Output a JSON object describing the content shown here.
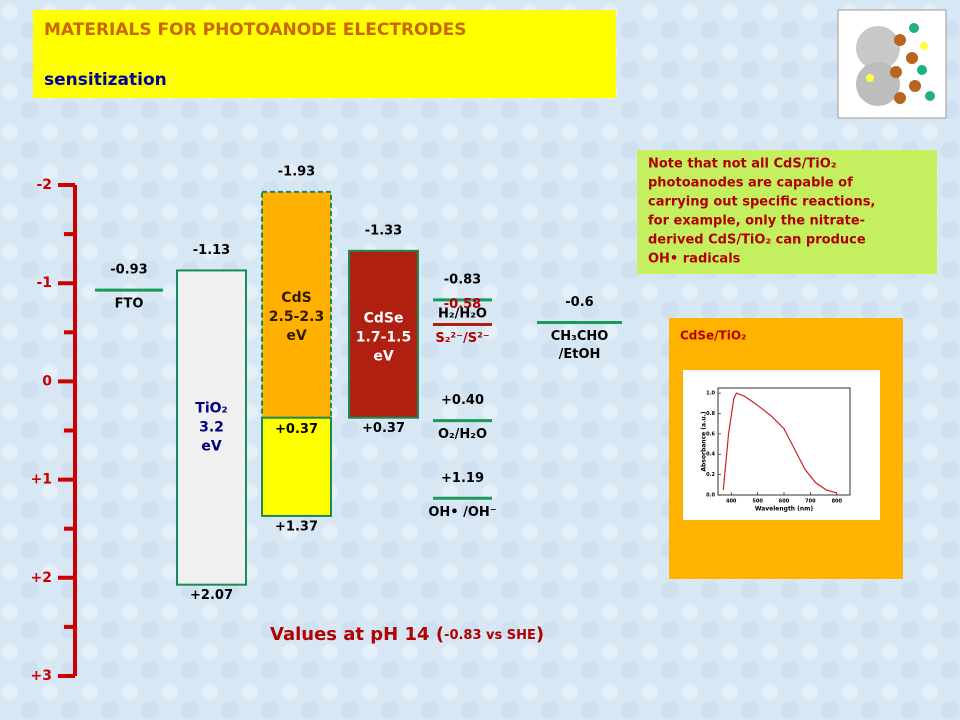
{
  "header": {
    "title": "MATERIALS  FOR PHOTOANODE  ELECTRODES",
    "subtitle": "sensitization"
  },
  "axis": {
    "ylim": [
      -2,
      3
    ],
    "ticks": [
      -2,
      -1,
      0,
      {
        "value": 1,
        "label": "+1"
      },
      {
        "value": 2,
        "label": "+2"
      },
      {
        "value": 3,
        "label": "+3"
      }
    ],
    "minor_ticks": [
      -1.5,
      -0.5,
      0.5,
      1.5,
      2.5
    ],
    "color": "#cc0000"
  },
  "bands": [
    {
      "lines": [
        "TiO₂",
        "3.2",
        "eV"
      ],
      "top": -1.13,
      "bottom": {
        "value": 2.07,
        "label": "+2.07"
      },
      "fill": "#f0f0f0",
      "stroke": "#1a8a5a",
      "text_color": "#000080"
    },
    {
      "lines": [
        "CdS",
        "2.5-2.3",
        "eV"
      ],
      "top": -1.93,
      "split": {
        "value": 0.37,
        "label": "+0.37"
      },
      "bottom": {
        "value": 1.37,
        "label": "+1.37"
      },
      "fill": "#ffb000",
      "fill2": "#ffff00",
      "stroke": "#1a8a5a",
      "text_color": "#331a00"
    },
    {
      "lines": [
        "CdSe",
        "1.7-1.5",
        "eV"
      ],
      "top": -1.33,
      "bottom": {
        "value": 0.37,
        "label": "+0.37"
      },
      "fill": "#b02010",
      "stroke": "#1a8a5a",
      "text_color": "#ffffff"
    }
  ],
  "levels": [
    {
      "lines": [
        "FTO"
      ],
      "value": -0.93,
      "color": "#1a9a5a",
      "text_color": "#000000"
    },
    {
      "lines": [
        "H₂/H₂O"
      ],
      "value": -0.83,
      "color": "#1a9a5a",
      "text_color": "#000000"
    },
    {
      "lines": [
        "S₂²⁻/S²⁻"
      ],
      "value": -0.58,
      "color": "#b02010",
      "text_color": "#b00000"
    },
    {
      "lines": [
        "O₂/H₂O"
      ],
      "value": {
        "value": 0.4,
        "label": "+0.40"
      },
      "color": "#1a9a5a",
      "text_color": "#000000"
    },
    {
      "lines": [
        "OH• /OH⁻"
      ],
      "value": {
        "value": 1.19,
        "label": "+1.19"
      },
      "color": "#1a9a5a",
      "text_color": "#000000"
    },
    {
      "lines": [
        "CH₃CHO",
        "/EtOH"
      ],
      "value": -0.6,
      "color": "#1a9a5a",
      "text_color": "#000000"
    }
  ],
  "footer": [
    "Values at pH 14 (",
    "-0.83 vs SHE",
    ")"
  ],
  "note": [
    "Note that not all CdS/TiO₂",
    "photoanodes are capable of",
    "carrying out specific reactions,",
    "for example, only the nitrate-",
    "derived CdS/TiO₂ can produce",
    "OH• radicals"
  ],
  "inset": {
    "title": "CdSe/TiO₂",
    "xlabel": "Wavelength (nm)",
    "ylabel": "Absorbance (a.u.)",
    "x": [
      370,
      390,
      410,
      420,
      450,
      500,
      550,
      600,
      640,
      680,
      720,
      760,
      800
    ],
    "values": [
      0.05,
      0.6,
      0.95,
      1.0,
      0.97,
      0.88,
      0.78,
      0.65,
      0.45,
      0.25,
      0.12,
      0.05,
      0.02
    ],
    "xlim": [
      350,
      850
    ],
    "ylim": [
      0,
      1.05
    ],
    "xticks": [
      400,
      500,
      600,
      700,
      800
    ],
    "yticks": [
      {
        "value": 0,
        "label": "0.0"
      },
      0.2,
      0.4,
      0.6,
      0.8,
      {
        "value": 1,
        "label": "1.0"
      }
    ],
    "color": "#cc2222"
  }
}
